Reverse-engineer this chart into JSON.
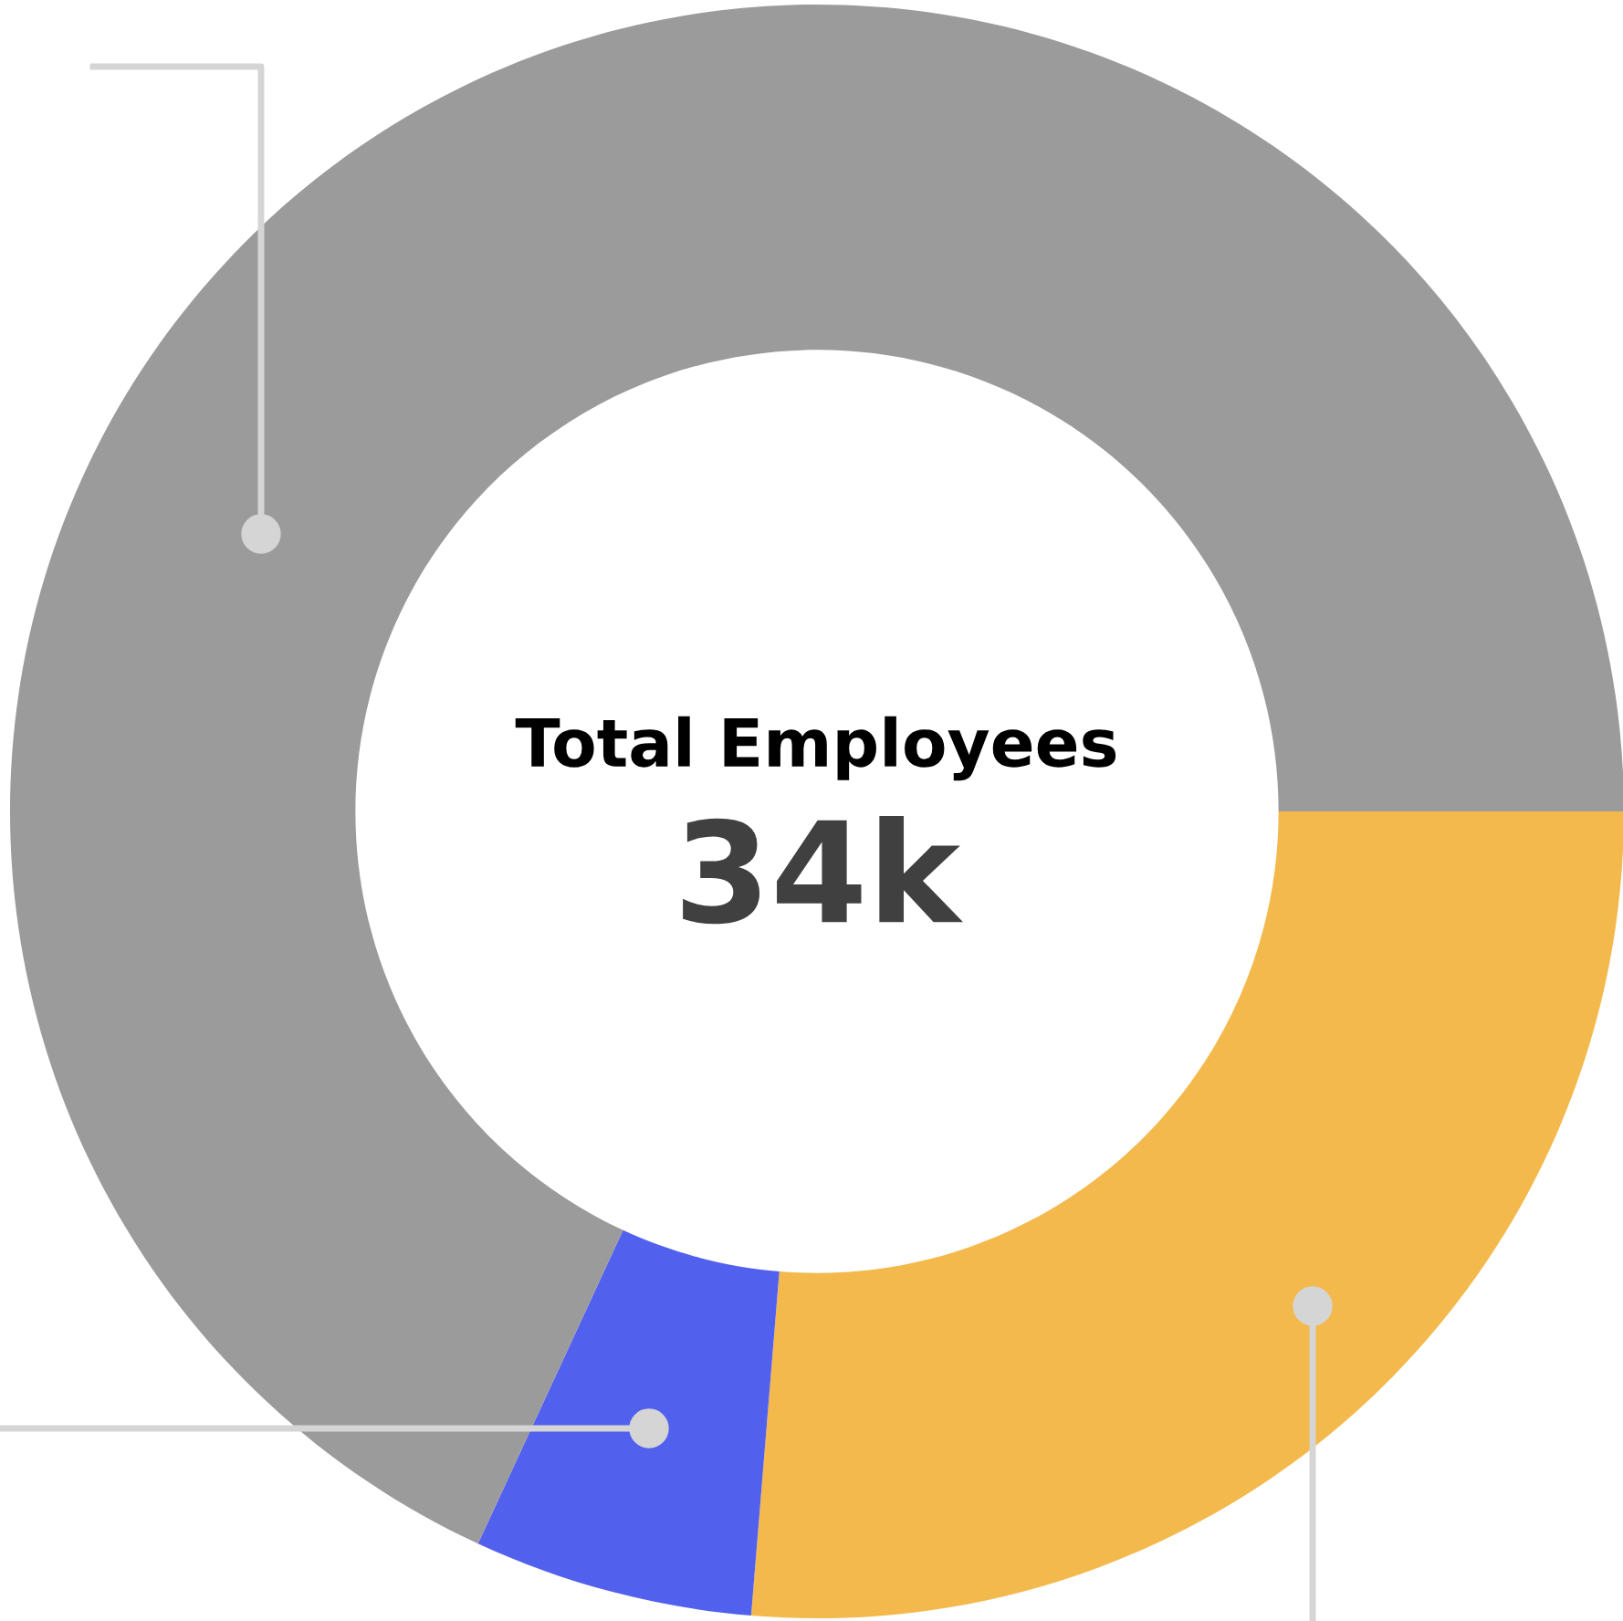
{
  "chart_data": {
    "type": "donut",
    "categories": [
      null,
      null,
      null
    ],
    "values": [
      26.3,
      5.6,
      68.1
    ],
    "colors": [
      "#f4b94c",
      "#5260ee",
      "#9b9b9b"
    ],
    "annotations": [
      "Total Employees",
      "34k"
    ]
  }
}
